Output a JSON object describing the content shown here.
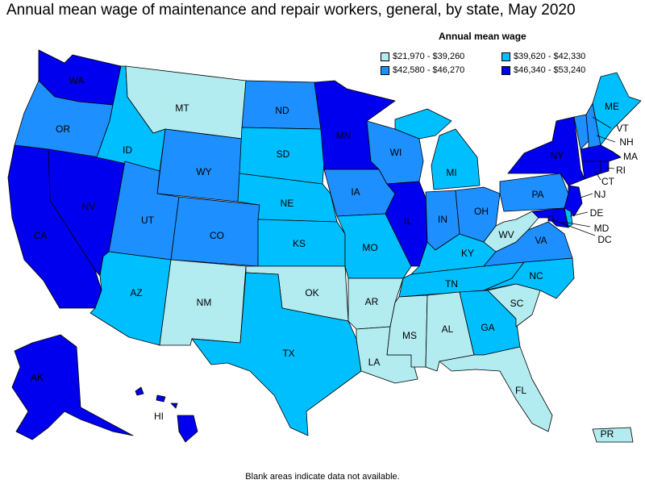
{
  "title": "Annual mean wage of maintenance and repair workers, general, by state, May 2020",
  "legend": {
    "title": "Annual mean wage",
    "items": [
      {
        "label": "$21,970 - $39,260",
        "color": "#b2ebf0"
      },
      {
        "label": "$39,620 - $42,330",
        "color": "#00bfff"
      },
      {
        "label": "$42,580 - $46,270",
        "color": "#1e8fff"
      },
      {
        "label": "$46,340 - $53,240",
        "color": "#0000ee"
      }
    ]
  },
  "footnote": "Blank areas indicate data not available.",
  "states": {
    "WA": {
      "label": "WA",
      "bin": 3
    },
    "OR": {
      "label": "OR",
      "bin": 2
    },
    "CA": {
      "label": "CA",
      "bin": 3
    },
    "NV": {
      "label": "NV",
      "bin": 3
    },
    "ID": {
      "label": "ID",
      "bin": 1
    },
    "MT": {
      "label": "MT",
      "bin": 0
    },
    "WY": {
      "label": "WY",
      "bin": 2
    },
    "UT": {
      "label": "UT",
      "bin": 2
    },
    "AZ": {
      "label": "AZ",
      "bin": 1
    },
    "CO": {
      "label": "CO",
      "bin": 2
    },
    "NM": {
      "label": "NM",
      "bin": 0
    },
    "ND": {
      "label": "ND",
      "bin": 2
    },
    "SD": {
      "label": "SD",
      "bin": 1
    },
    "NE": {
      "label": "NE",
      "bin": 1
    },
    "KS": {
      "label": "KS",
      "bin": 1
    },
    "OK": {
      "label": "OK",
      "bin": 0
    },
    "TX": {
      "label": "TX",
      "bin": 1
    },
    "MN": {
      "label": "MN",
      "bin": 3
    },
    "IA": {
      "label": "IA",
      "bin": 2
    },
    "MO": {
      "label": "MO",
      "bin": 1
    },
    "AR": {
      "label": "AR",
      "bin": 0
    },
    "LA": {
      "label": "LA",
      "bin": 0
    },
    "WI": {
      "label": "WI",
      "bin": 2
    },
    "IL": {
      "label": "IL",
      "bin": 3
    },
    "MI": {
      "label": "MI",
      "bin": 1
    },
    "IN": {
      "label": "IN",
      "bin": 2
    },
    "OH": {
      "label": "OH",
      "bin": 2
    },
    "KY": {
      "label": "KY",
      "bin": 1
    },
    "TN": {
      "label": "TN",
      "bin": 1
    },
    "MS": {
      "label": "MS",
      "bin": 0
    },
    "AL": {
      "label": "AL",
      "bin": 0
    },
    "GA": {
      "label": "GA",
      "bin": 1
    },
    "FL": {
      "label": "FL",
      "bin": 0
    },
    "SC": {
      "label": "SC",
      "bin": 0
    },
    "NC": {
      "label": "NC",
      "bin": 1
    },
    "VA": {
      "label": "VA",
      "bin": 2
    },
    "WV": {
      "label": "WV",
      "bin": 0
    },
    "PA": {
      "label": "PA",
      "bin": 2
    },
    "NY": {
      "label": "NY",
      "bin": 3
    },
    "VT": {
      "label": "VT",
      "bin": 2
    },
    "NH": {
      "label": "NH",
      "bin": 2
    },
    "ME": {
      "label": "ME",
      "bin": 1
    },
    "MA": {
      "label": "MA",
      "bin": 3
    },
    "RI": {
      "label": "RI",
      "bin": 3
    },
    "CT": {
      "label": "CT",
      "bin": 3
    },
    "NJ": {
      "label": "NJ",
      "bin": 3
    },
    "DE": {
      "label": "DE",
      "bin": 1
    },
    "MD": {
      "label": "MD",
      "bin": 3
    },
    "DC": {
      "label": "DC",
      "bin": 3
    },
    "AK": {
      "label": "AK",
      "bin": 3
    },
    "HI": {
      "label": "HI",
      "bin": 3
    },
    "PR": {
      "label": "PR",
      "bin": 0
    }
  }
}
